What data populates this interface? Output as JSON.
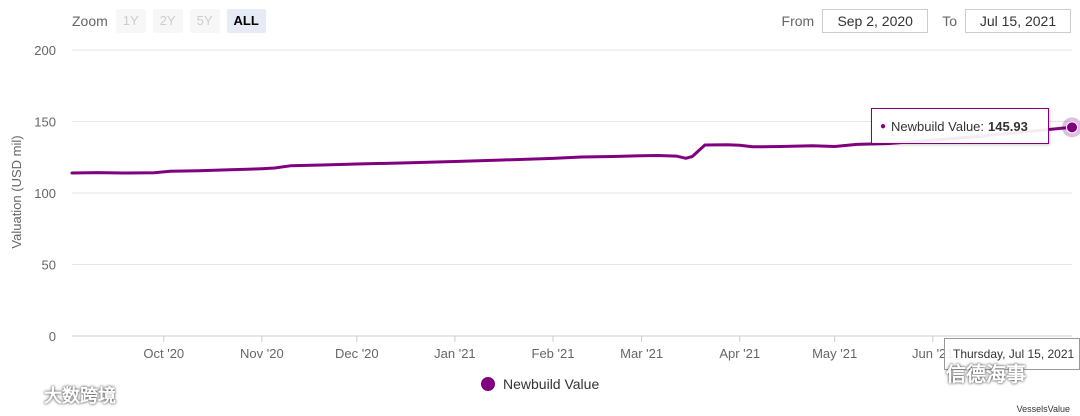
{
  "zoom": {
    "label": "Zoom",
    "buttons": [
      {
        "label": "1Y",
        "active": false
      },
      {
        "label": "2Y",
        "active": false
      },
      {
        "label": "5Y",
        "active": false
      },
      {
        "label": "ALL",
        "active": true
      }
    ]
  },
  "range": {
    "from_label": "From",
    "from_value": "Sep 2, 2020",
    "to_label": "To",
    "to_value": "Jul 15, 2021"
  },
  "tooltip": {
    "series": "Newbuild Value:",
    "value": "145.93"
  },
  "hover_date": "Thursday, Jul 15, 2021",
  "legend": {
    "label": "Newbuild Value"
  },
  "credits": "VesselsValue",
  "watermarks": {
    "left": "大数跨境",
    "right": "信德海事"
  },
  "colors": {
    "series": "#800080",
    "grid": "#e6e6e6"
  },
  "chart_data": {
    "type": "line",
    "ylabel": "Valuation (USD mil)",
    "ylim": [
      0,
      200
    ],
    "yticks": [
      0,
      50,
      100,
      150,
      200
    ],
    "xlim": [
      "2020-09-02",
      "2021-07-15"
    ],
    "xticks": [
      {
        "date": "2020-10-01",
        "label": "Oct '20"
      },
      {
        "date": "2020-11-01",
        "label": "Nov '20"
      },
      {
        "date": "2020-12-01",
        "label": "Dec '20"
      },
      {
        "date": "2021-01-01",
        "label": "Jan '21"
      },
      {
        "date": "2021-02-01",
        "label": "Feb '21"
      },
      {
        "date": "2021-03-01",
        "label": "Mar '21"
      },
      {
        "date": "2021-04-01",
        "label": "Apr '21"
      },
      {
        "date": "2021-05-01",
        "label": "May '21"
      },
      {
        "date": "2021-06-01",
        "label": "Jun '21"
      }
    ],
    "series": [
      {
        "name": "Newbuild Value",
        "color": "#800080",
        "points": [
          [
            "2020-09-02",
            114.0
          ],
          [
            "2020-09-10",
            114.3
          ],
          [
            "2020-09-18",
            114.0
          ],
          [
            "2020-09-28",
            114.2
          ],
          [
            "2020-10-03",
            115.2
          ],
          [
            "2020-10-12",
            115.6
          ],
          [
            "2020-10-22",
            116.2
          ],
          [
            "2020-11-01",
            117.0
          ],
          [
            "2020-11-05",
            117.5
          ],
          [
            "2020-11-10",
            119.0
          ],
          [
            "2020-11-20",
            119.6
          ],
          [
            "2020-12-01",
            120.3
          ],
          [
            "2020-12-15",
            121.0
          ],
          [
            "2021-01-01",
            122.0
          ],
          [
            "2021-01-15",
            123.0
          ],
          [
            "2021-02-01",
            124.2
          ],
          [
            "2021-02-10",
            125.2
          ],
          [
            "2021-02-20",
            125.5
          ],
          [
            "2021-03-01",
            126.1
          ],
          [
            "2021-03-06",
            126.2
          ],
          [
            "2021-03-12",
            125.8
          ],
          [
            "2021-03-15",
            124.3
          ],
          [
            "2021-03-17",
            125.5
          ],
          [
            "2021-03-21",
            133.6
          ],
          [
            "2021-03-28",
            133.8
          ],
          [
            "2021-04-01",
            133.4
          ],
          [
            "2021-04-05",
            132.3
          ],
          [
            "2021-04-14",
            132.5
          ],
          [
            "2021-04-24",
            133.1
          ],
          [
            "2021-05-01",
            132.5
          ],
          [
            "2021-05-08",
            134.0
          ],
          [
            "2021-05-18",
            134.6
          ],
          [
            "2021-06-01",
            137.0
          ],
          [
            "2021-06-15",
            139.5
          ],
          [
            "2021-07-01",
            143.0
          ],
          [
            "2021-07-15",
            145.93
          ]
        ]
      }
    ],
    "grid": true,
    "legend_position": "bottom-center"
  }
}
